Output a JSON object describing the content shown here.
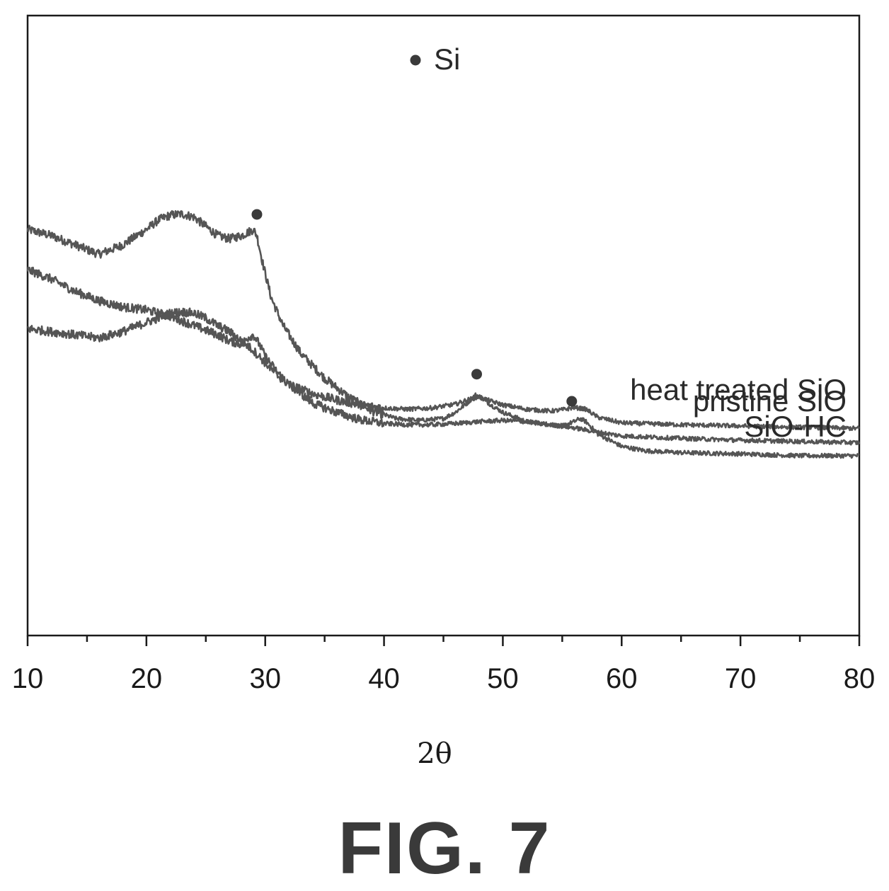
{
  "figure_caption": "FIG. 7",
  "chart_data": {
    "type": "line",
    "xlabel": "2θ",
    "ylabel": "",
    "xlim": [
      10,
      80
    ],
    "x_ticks_major": [
      10,
      20,
      30,
      40,
      50,
      60,
      70,
      80
    ],
    "x_tick_labels": [
      "10",
      "20",
      "30",
      "40",
      "50",
      "60",
      "70",
      "80"
    ],
    "x_ticks_minor": [
      15,
      25,
      35,
      45,
      55,
      65,
      75
    ],
    "y_axis_ticks": false,
    "grid": false,
    "legend": {
      "marker": "filled-circle",
      "label": "Si",
      "placement": "top-center"
    },
    "series": [
      {
        "name": "SiO-HC",
        "color": "#555555",
        "x": [
          10,
          12,
          14,
          16,
          18,
          20,
          21,
          22,
          23,
          24,
          25,
          26,
          27,
          28,
          28.5,
          29,
          29.3,
          29.8,
          30.5,
          31.5,
          33,
          35,
          37,
          39,
          41,
          43,
          45,
          46,
          47,
          47.7,
          48,
          49,
          50,
          52,
          54,
          55,
          56,
          56.5,
          57,
          58,
          60,
          62,
          65,
          70,
          75,
          80
        ],
        "values": [
          0.655,
          0.645,
          0.63,
          0.615,
          0.63,
          0.655,
          0.67,
          0.678,
          0.68,
          0.675,
          0.66,
          0.645,
          0.64,
          0.645,
          0.65,
          0.655,
          0.645,
          0.6,
          0.545,
          0.5,
          0.455,
          0.415,
          0.385,
          0.362,
          0.35,
          0.347,
          0.35,
          0.36,
          0.375,
          0.388,
          0.386,
          0.372,
          0.36,
          0.345,
          0.34,
          0.338,
          0.345,
          0.35,
          0.345,
          0.325,
          0.305,
          0.298,
          0.295,
          0.293,
          0.29,
          0.29
        ]
      },
      {
        "name": "heat treated SiO",
        "color": "#555555",
        "x": [
          10,
          12,
          14,
          16,
          18,
          20,
          22,
          24,
          26,
          27,
          28,
          28.5,
          29,
          29.5,
          30,
          31,
          32,
          34,
          36,
          38,
          40,
          42,
          44,
          46,
          47,
          48,
          49,
          50,
          52,
          54,
          55,
          56,
          57,
          58,
          60,
          65,
          70,
          75,
          80
        ],
        "values": [
          0.59,
          0.575,
          0.555,
          0.54,
          0.53,
          0.525,
          0.515,
          0.5,
          0.485,
          0.475,
          0.47,
          0.48,
          0.485,
          0.47,
          0.45,
          0.425,
          0.405,
          0.39,
          0.38,
          0.372,
          0.367,
          0.365,
          0.367,
          0.373,
          0.38,
          0.385,
          0.378,
          0.372,
          0.365,
          0.362,
          0.364,
          0.368,
          0.365,
          0.352,
          0.343,
          0.34,
          0.338,
          0.336,
          0.334
        ]
      },
      {
        "name": "pristine SiO",
        "color": "#555555",
        "x": [
          10,
          12,
          14,
          16,
          18,
          20,
          21,
          22,
          23,
          24,
          25,
          26,
          27,
          28,
          29,
          30,
          31,
          32,
          33,
          34,
          36,
          38,
          40,
          42,
          44,
          46,
          48,
          50,
          52,
          54,
          56,
          58,
          60,
          65,
          70,
          75,
          80
        ],
        "values": [
          0.495,
          0.49,
          0.485,
          0.48,
          0.49,
          0.505,
          0.512,
          0.52,
          0.522,
          0.52,
          0.512,
          0.5,
          0.49,
          0.475,
          0.46,
          0.44,
          0.42,
          0.405,
          0.39,
          0.375,
          0.36,
          0.348,
          0.342,
          0.34,
          0.34,
          0.342,
          0.345,
          0.347,
          0.345,
          0.34,
          0.335,
          0.328,
          0.322,
          0.318,
          0.315,
          0.313,
          0.311
        ]
      }
    ],
    "markers": [
      {
        "series": "SiO-HC",
        "x": 29.3
      },
      {
        "series": "SiO-HC",
        "x": 47.8
      },
      {
        "series": "SiO-HC",
        "x": 55.8
      }
    ]
  }
}
